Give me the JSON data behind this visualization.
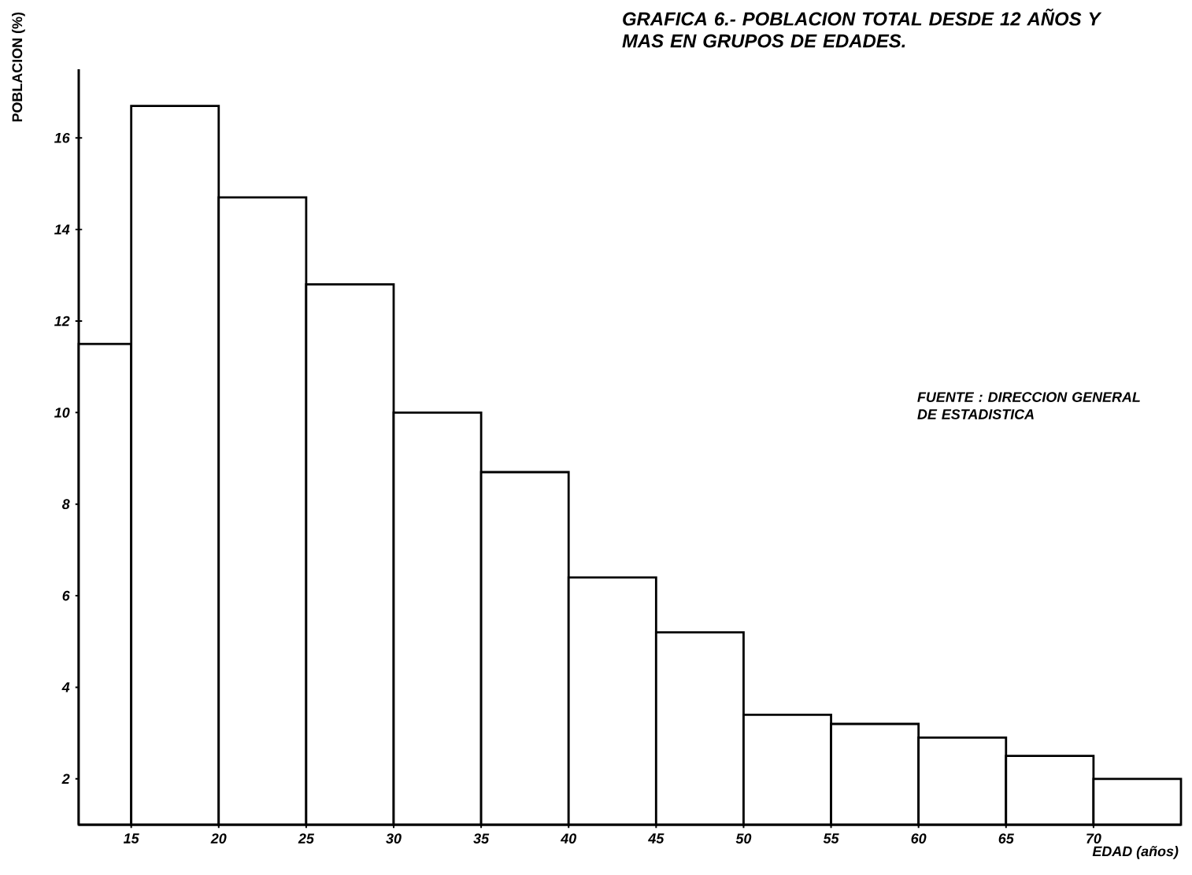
{
  "chart_data": {
    "type": "histogram",
    "title": "GRAFICA 6.- POBLACION TOTAL DESDE 12 AÑOS Y MAS EN GRUPOS DE EDADES.",
    "xlabel": "EDAD (años)",
    "ylabel": "POBLACION (%)",
    "annotations": [
      "FUENTE : DIRECCION GENERAL DE ESTADISTICA"
    ],
    "bins": [
      12,
      15,
      20,
      25,
      30,
      35,
      40,
      45,
      50,
      55,
      60,
      65,
      70,
      75
    ],
    "values": [
      11.5,
      16.7,
      14.7,
      12.8,
      10.0,
      8.7,
      6.4,
      5.2,
      3.4,
      3.2,
      2.9,
      2.5,
      2.0
    ],
    "xlim": [
      12,
      75
    ],
    "ylim": [
      1,
      17.5
    ],
    "xticks": [
      15,
      20,
      25,
      30,
      35,
      40,
      45,
      50,
      55,
      60,
      65,
      70
    ],
    "yticks": [
      2,
      4,
      6,
      8,
      10,
      12,
      14,
      16
    ]
  }
}
